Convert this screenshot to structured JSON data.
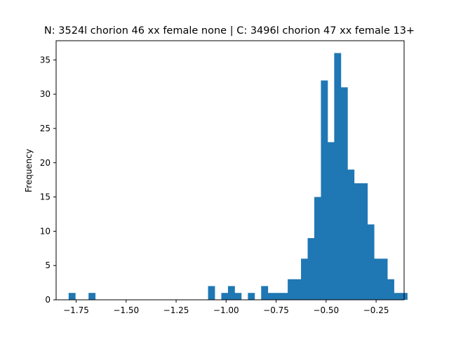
{
  "chart_data": {
    "type": "bar",
    "title": "N: 3524l chorion 46 xx female none | C: 3496l chorion 47 xx female 13+",
    "xlabel": "",
    "ylabel": "Frequency",
    "xlim": [
      -1.85,
      -0.11
    ],
    "ylim": [
      0,
      37.8
    ],
    "x_ticks": [
      -1.75,
      -1.5,
      -1.25,
      -1.0,
      -0.75,
      -0.5,
      -0.25
    ],
    "x_tick_labels": [
      "−1.75",
      "−1.50",
      "−1.25",
      "−1.00",
      "−0.75",
      "−0.50",
      "−0.25"
    ],
    "y_ticks": [
      0,
      5,
      10,
      15,
      20,
      25,
      30,
      35
    ],
    "y_tick_labels": [
      "0",
      "5",
      "10",
      "15",
      "20",
      "25",
      "30",
      "35"
    ],
    "grid": false,
    "bar_color": "#1f77b4",
    "bins": {
      "start": -1.7875,
      "width": 0.0332,
      "values": [
        1,
        0,
        0,
        1,
        0,
        0,
        0,
        0,
        0,
        0,
        0,
        0,
        0,
        0,
        0,
        0,
        0,
        0,
        0,
        0,
        0,
        2,
        0,
        1,
        2,
        1,
        0,
        1,
        0,
        2,
        1,
        1,
        1,
        3,
        3,
        6,
        9,
        15,
        32,
        23,
        36,
        31,
        19,
        17,
        17,
        11,
        6,
        6,
        3,
        1,
        1
      ]
    }
  }
}
